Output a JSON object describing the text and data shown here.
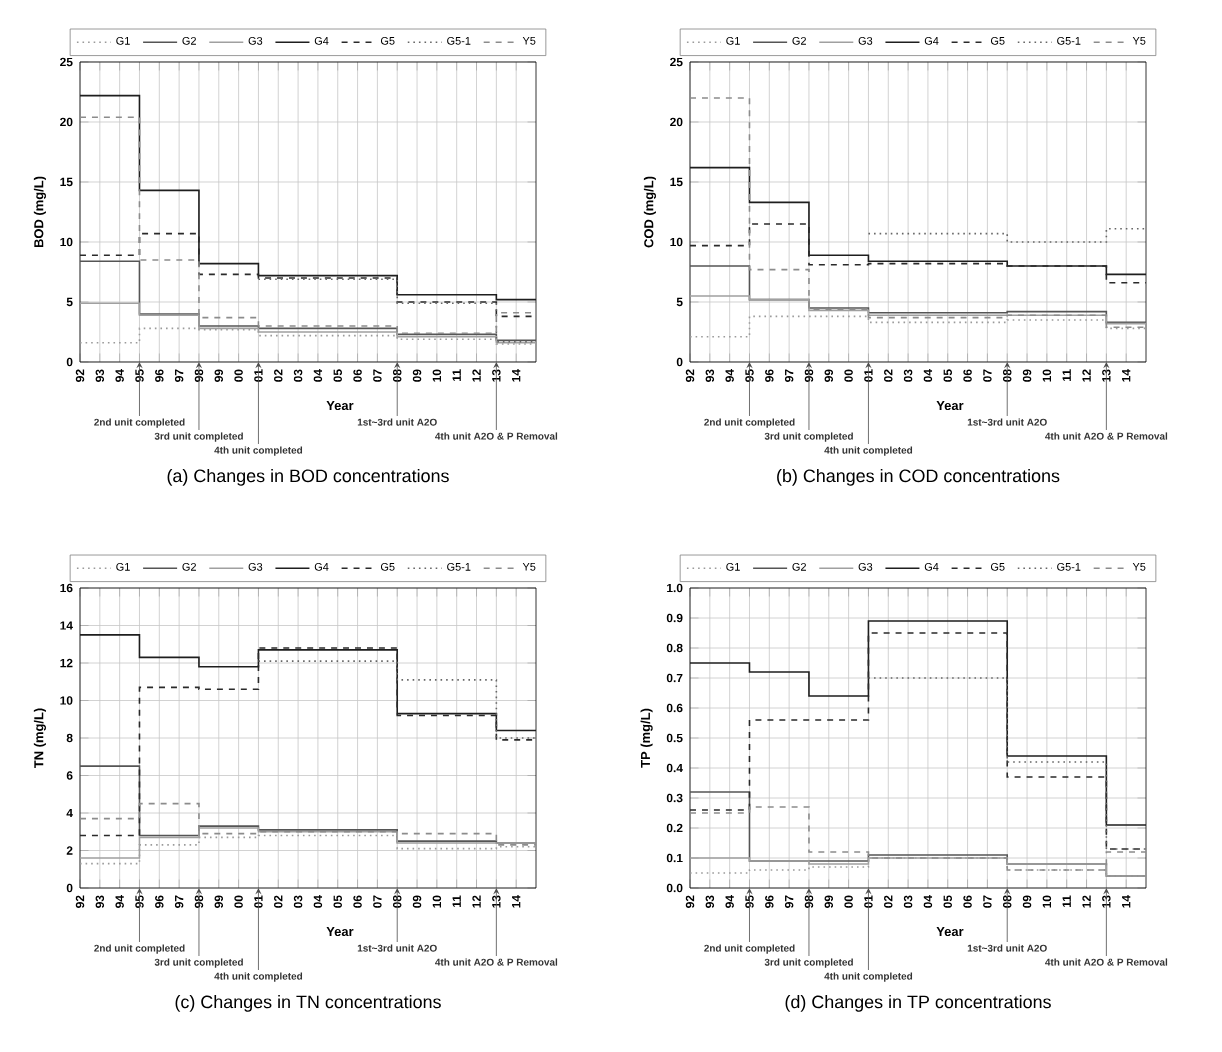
{
  "chart_data": [
    {
      "type": "step",
      "title": "(a) Changes in BOD concentrations",
      "xlabel": "Year",
      "ylabel": "BOD (mg/L)",
      "x": [
        1992,
        1995,
        1998,
        2001,
        2008,
        2013,
        2015
      ],
      "xlim": [
        1992,
        2015
      ],
      "xticks": [
        {
          "value": 1992,
          "label": "92"
        },
        {
          "value": 1993,
          "label": "93"
        },
        {
          "value": 1994,
          "label": "94"
        },
        {
          "value": 1995,
          "label": "95"
        },
        {
          "value": 1996,
          "label": "96"
        },
        {
          "value": 1997,
          "label": "97"
        },
        {
          "value": 1998,
          "label": "98"
        },
        {
          "value": 1999,
          "label": "99"
        },
        {
          "value": 2000,
          "label": "00"
        },
        {
          "value": 2001,
          "label": "01"
        },
        {
          "value": 2002,
          "label": "02"
        },
        {
          "value": 2003,
          "label": "03"
        },
        {
          "value": 2004,
          "label": "04"
        },
        {
          "value": 2005,
          "label": "05"
        },
        {
          "value": 2006,
          "label": "06"
        },
        {
          "value": 2007,
          "label": "07"
        },
        {
          "value": 2008,
          "label": "08"
        },
        {
          "value": 2009,
          "label": "09"
        },
        {
          "value": 2010,
          "label": "10"
        },
        {
          "value": 2011,
          "label": "11"
        },
        {
          "value": 2012,
          "label": "12"
        },
        {
          "value": 2013,
          "label": "13"
        },
        {
          "value": 2014,
          "label": "14"
        }
      ],
      "ylim": [
        0,
        25
      ],
      "yticks": [
        0,
        5,
        10,
        15,
        20,
        25
      ],
      "grid": true,
      "legend": "top",
      "series": [
        {
          "name": "G1",
          "color": "#9a9a9a",
          "line_style": "dotted",
          "values": [
            1.6,
            2.8,
            2.7,
            2.2,
            1.9,
            1.5,
            1.5
          ]
        },
        {
          "name": "G2",
          "color": "#555555",
          "line_style": "solid",
          "values": [
            8.4,
            4.0,
            3.0,
            2.8,
            2.3,
            1.8,
            1.8
          ]
        },
        {
          "name": "G3",
          "color": "#a0a0a0",
          "line_style": "solid",
          "values": [
            4.9,
            3.9,
            2.8,
            2.5,
            2.1,
            1.6,
            1.6
          ]
        },
        {
          "name": "G4",
          "color": "#1e1e1e",
          "line_style": "solid",
          "values": [
            22.2,
            14.3,
            8.2,
            7.2,
            5.6,
            5.2,
            5.2
          ]
        },
        {
          "name": "G5",
          "color": "#2a2a2a",
          "line_style": "dashed",
          "values": [
            8.9,
            10.7,
            7.3,
            7.0,
            5.0,
            3.8,
            3.8
          ]
        },
        {
          "name": "G5-1",
          "color": "#666666",
          "line_style": "dotted",
          "values": [
            null,
            null,
            null,
            6.9,
            4.9,
            1.7,
            1.7
          ]
        },
        {
          "name": "Y5",
          "color": "#8c8c8c",
          "line_style": "dashed",
          "values": [
            20.4,
            8.5,
            3.7,
            3.0,
            2.4,
            4.1,
            4.1
          ]
        }
      ],
      "annotations": [
        {
          "text": "2nd unit completed",
          "x": 1995,
          "y": 0
        },
        {
          "text": "3rd unit completed",
          "x": 1998,
          "y": 0
        },
        {
          "text": "4th unit completed",
          "x": 2001,
          "y": 0
        },
        {
          "text": "1st~3rd unit A2O",
          "x": 2008,
          "y": 0
        },
        {
          "text": "4th unit A2O & P Removal",
          "x": 2013,
          "y": 0
        }
      ]
    },
    {
      "type": "step",
      "title": "(b) Changes in COD concentrations",
      "xlabel": "Year",
      "ylabel": "COD (mg/L)",
      "x": [
        1992,
        1995,
        1998,
        2001,
        2008,
        2013,
        2015
      ],
      "xlim": [
        1992,
        2015
      ],
      "xticks": [
        {
          "value": 1992,
          "label": "92"
        },
        {
          "value": 1993,
          "label": "93"
        },
        {
          "value": 1994,
          "label": "94"
        },
        {
          "value": 1995,
          "label": "95"
        },
        {
          "value": 1996,
          "label": "96"
        },
        {
          "value": 1997,
          "label": "97"
        },
        {
          "value": 1998,
          "label": "98"
        },
        {
          "value": 1999,
          "label": "99"
        },
        {
          "value": 2000,
          "label": "00"
        },
        {
          "value": 2001,
          "label": "01"
        },
        {
          "value": 2002,
          "label": "02"
        },
        {
          "value": 2003,
          "label": "03"
        },
        {
          "value": 2004,
          "label": "04"
        },
        {
          "value": 2005,
          "label": "05"
        },
        {
          "value": 2006,
          "label": "06"
        },
        {
          "value": 2007,
          "label": "07"
        },
        {
          "value": 2008,
          "label": "08"
        },
        {
          "value": 2009,
          "label": "09"
        },
        {
          "value": 2010,
          "label": "10"
        },
        {
          "value": 2011,
          "label": "11"
        },
        {
          "value": 2012,
          "label": "12"
        },
        {
          "value": 2013,
          "label": "13"
        },
        {
          "value": 2014,
          "label": "14"
        }
      ],
      "ylim": [
        0,
        25
      ],
      "yticks": [
        0,
        5,
        10,
        15,
        20,
        25
      ],
      "grid": true,
      "legend": "top",
      "series": [
        {
          "name": "G1",
          "color": "#9a9a9a",
          "line_style": "dotted",
          "values": [
            2.1,
            3.8,
            3.8,
            3.3,
            3.5,
            2.8,
            2.8
          ]
        },
        {
          "name": "G2",
          "color": "#555555",
          "line_style": "solid",
          "values": [
            8.0,
            5.2,
            4.5,
            4.1,
            4.2,
            3.3,
            3.3
          ]
        },
        {
          "name": "G3",
          "color": "#a0a0a0",
          "line_style": "solid",
          "values": [
            5.5,
            5.2,
            4.3,
            3.9,
            3.9,
            3.2,
            3.2
          ]
        },
        {
          "name": "G4",
          "color": "#1e1e1e",
          "line_style": "solid",
          "values": [
            16.2,
            13.3,
            8.9,
            8.4,
            8.0,
            7.3,
            7.3
          ]
        },
        {
          "name": "G5",
          "color": "#2a2a2a",
          "line_style": "dashed",
          "values": [
            9.7,
            11.5,
            8.1,
            8.2,
            8.0,
            6.6,
            6.6
          ]
        },
        {
          "name": "G5-1",
          "color": "#666666",
          "line_style": "dotted",
          "values": [
            null,
            null,
            null,
            10.7,
            10.0,
            11.1,
            11.1
          ]
        },
        {
          "name": "Y5",
          "color": "#8c8c8c",
          "line_style": "dashed",
          "values": [
            22.0,
            7.7,
            4.4,
            3.7,
            3.9,
            2.9,
            2.9
          ]
        }
      ],
      "annotations": [
        {
          "text": "2nd unit completed",
          "x": 1995,
          "y": 0
        },
        {
          "text": "3rd unit completed",
          "x": 1998,
          "y": 0
        },
        {
          "text": "4th unit completed",
          "x": 2001,
          "y": 0
        },
        {
          "text": "1st~3rd unit A2O",
          "x": 2008,
          "y": 0
        },
        {
          "text": "4th unit A2O & P Removal",
          "x": 2013,
          "y": 0
        }
      ]
    },
    {
      "type": "step",
      "title": "(c) Changes in TN concentrations",
      "xlabel": "Year",
      "ylabel": "TN (mg/L)",
      "x": [
        1992,
        1995,
        1998,
        2001,
        2008,
        2013,
        2015
      ],
      "xlim": [
        1992,
        2015
      ],
      "xticks": [
        {
          "value": 1992,
          "label": "92"
        },
        {
          "value": 1993,
          "label": "93"
        },
        {
          "value": 1994,
          "label": "94"
        },
        {
          "value": 1995,
          "label": "95"
        },
        {
          "value": 1996,
          "label": "96"
        },
        {
          "value": 1997,
          "label": "97"
        },
        {
          "value": 1998,
          "label": "98"
        },
        {
          "value": 1999,
          "label": "99"
        },
        {
          "value": 2000,
          "label": "00"
        },
        {
          "value": 2001,
          "label": "01"
        },
        {
          "value": 2002,
          "label": "02"
        },
        {
          "value": 2003,
          "label": "03"
        },
        {
          "value": 2004,
          "label": "04"
        },
        {
          "value": 2005,
          "label": "05"
        },
        {
          "value": 2006,
          "label": "06"
        },
        {
          "value": 2007,
          "label": "07"
        },
        {
          "value": 2008,
          "label": "08"
        },
        {
          "value": 2009,
          "label": "09"
        },
        {
          "value": 2010,
          "label": "10"
        },
        {
          "value": 2011,
          "label": "11"
        },
        {
          "value": 2012,
          "label": "12"
        },
        {
          "value": 2013,
          "label": "13"
        },
        {
          "value": 2014,
          "label": "14"
        }
      ],
      "ylim": [
        0,
        16
      ],
      "yticks": [
        0,
        2,
        4,
        6,
        8,
        10,
        12,
        14,
        16
      ],
      "grid": true,
      "legend": "top",
      "series": [
        {
          "name": "G1",
          "color": "#9a9a9a",
          "line_style": "dotted",
          "values": [
            1.3,
            2.3,
            2.7,
            2.8,
            2.1,
            2.2,
            2.2
          ]
        },
        {
          "name": "G2",
          "color": "#555555",
          "line_style": "solid",
          "values": [
            6.5,
            2.8,
            3.3,
            3.1,
            2.5,
            2.4,
            2.4
          ]
        },
        {
          "name": "G3",
          "color": "#a0a0a0",
          "line_style": "solid",
          "values": [
            1.6,
            2.7,
            3.2,
            3.0,
            2.4,
            2.4,
            2.4
          ]
        },
        {
          "name": "G4",
          "color": "#1e1e1e",
          "line_style": "solid",
          "values": [
            13.5,
            12.3,
            11.8,
            12.7,
            9.3,
            8.4,
            8.4
          ]
        },
        {
          "name": "G5",
          "color": "#2a2a2a",
          "line_style": "dashed",
          "values": [
            2.8,
            10.7,
            10.6,
            12.8,
            9.2,
            7.9,
            7.9
          ]
        },
        {
          "name": "G5-1",
          "color": "#666666",
          "line_style": "dotted",
          "values": [
            null,
            null,
            null,
            12.1,
            11.1,
            8.0,
            8.0
          ]
        },
        {
          "name": "Y5",
          "color": "#8c8c8c",
          "line_style": "dashed",
          "values": [
            3.7,
            4.5,
            2.9,
            3.0,
            2.9,
            2.3,
            2.3
          ]
        }
      ],
      "annotations": [
        {
          "text": "2nd unit completed",
          "x": 1995,
          "y": 0
        },
        {
          "text": "3rd unit completed",
          "x": 1998,
          "y": 0
        },
        {
          "text": "4th unit completed",
          "x": 2001,
          "y": 0
        },
        {
          "text": "1st~3rd unit A2O",
          "x": 2008,
          "y": 0
        },
        {
          "text": "4th unit A2O & P Removal",
          "x": 2013,
          "y": 0
        }
      ]
    },
    {
      "type": "step",
      "title": "(d) Changes in TP concentrations",
      "xlabel": "Year",
      "ylabel": "TP (mg/L)",
      "x": [
        1992,
        1995,
        1998,
        2001,
        2008,
        2013,
        2015
      ],
      "xlim": [
        1992,
        2015
      ],
      "xticks": [
        {
          "value": 1992,
          "label": "92"
        },
        {
          "value": 1993,
          "label": "93"
        },
        {
          "value": 1994,
          "label": "94"
        },
        {
          "value": 1995,
          "label": "95"
        },
        {
          "value": 1996,
          "label": "96"
        },
        {
          "value": 1997,
          "label": "97"
        },
        {
          "value": 1998,
          "label": "98"
        },
        {
          "value": 1999,
          "label": "99"
        },
        {
          "value": 2000,
          "label": "00"
        },
        {
          "value": 2001,
          "label": "01"
        },
        {
          "value": 2002,
          "label": "02"
        },
        {
          "value": 2003,
          "label": "03"
        },
        {
          "value": 2004,
          "label": "04"
        },
        {
          "value": 2005,
          "label": "05"
        },
        {
          "value": 2006,
          "label": "06"
        },
        {
          "value": 2007,
          "label": "07"
        },
        {
          "value": 2008,
          "label": "08"
        },
        {
          "value": 2009,
          "label": "09"
        },
        {
          "value": 2010,
          "label": "10"
        },
        {
          "value": 2011,
          "label": "11"
        },
        {
          "value": 2012,
          "label": "12"
        },
        {
          "value": 2013,
          "label": "13"
        },
        {
          "value": 2014,
          "label": "14"
        }
      ],
      "ylim": [
        0,
        1
      ],
      "yticks": [
        {
          "value": 0,
          "label": "0.0"
        },
        0.1,
        0.2,
        0.3,
        0.4,
        0.5,
        0.6,
        0.7,
        0.8,
        0.9,
        {
          "value": 1,
          "label": "1.0"
        }
      ],
      "grid": true,
      "legend": "top",
      "series": [
        {
          "name": "G1",
          "color": "#9a9a9a",
          "line_style": "dotted",
          "values": [
            0.05,
            0.06,
            0.07,
            0.1,
            0.06,
            0.04,
            0.04
          ]
        },
        {
          "name": "G2",
          "color": "#555555",
          "line_style": "solid",
          "values": [
            0.32,
            0.09,
            0.09,
            0.11,
            0.08,
            0.04,
            0.04
          ]
        },
        {
          "name": "G3",
          "color": "#a0a0a0",
          "line_style": "solid",
          "values": [
            0.1,
            0.09,
            0.08,
            0.1,
            0.08,
            0.04,
            0.04
          ]
        },
        {
          "name": "G4",
          "color": "#1e1e1e",
          "line_style": "solid",
          "values": [
            0.75,
            0.72,
            0.64,
            0.89,
            0.44,
            0.21,
            0.21
          ]
        },
        {
          "name": "G5",
          "color": "#2a2a2a",
          "line_style": "dashed",
          "values": [
            0.26,
            0.56,
            0.56,
            0.85,
            0.37,
            0.13,
            0.13
          ]
        },
        {
          "name": "G5-1",
          "color": "#666666",
          "line_style": "dotted",
          "values": [
            null,
            null,
            null,
            0.7,
            0.42,
            0.13,
            0.13
          ]
        },
        {
          "name": "Y5",
          "color": "#8c8c8c",
          "line_style": "dashed",
          "values": [
            0.25,
            0.27,
            0.12,
            0.1,
            0.06,
            0.12,
            0.12
          ]
        }
      ],
      "annotations": [
        {
          "text": "2nd unit completed",
          "x": 1995,
          "y": 0
        },
        {
          "text": "3rd unit completed",
          "x": 1998,
          "y": 0
        },
        {
          "text": "4th unit completed",
          "x": 2001,
          "y": 0
        },
        {
          "text": "1st~3rd unit A2O",
          "x": 2008,
          "y": 0
        },
        {
          "text": "4th unit A2O & P Removal",
          "x": 2013,
          "y": 0
        }
      ]
    }
  ]
}
